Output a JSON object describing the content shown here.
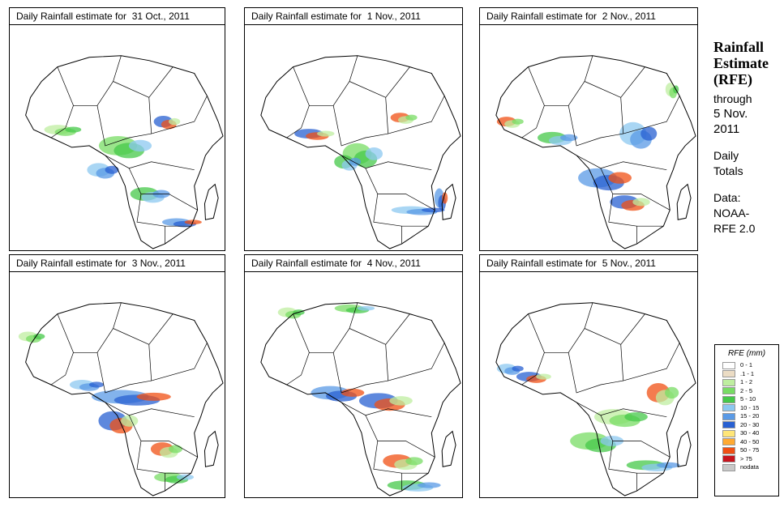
{
  "panels": [
    {
      "title": "Daily Rainfall estimate for  31 Oct., 2011"
    },
    {
      "title": "Daily Rainfall estimate for  1 Nov., 2011"
    },
    {
      "title": "Daily Rainfall estimate for  2 Nov., 2011"
    },
    {
      "title": "Daily Rainfall estimate for  3 Nov., 2011"
    },
    {
      "title": "Daily Rainfall estimate for  4 Nov., 2011"
    },
    {
      "title": "Daily Rainfall estimate for  5 Nov., 2011"
    }
  ],
  "side": {
    "title_line1": "Rainfall",
    "title_line2": "Estimate",
    "title_line3": "(RFE)",
    "through": "through",
    "date_line1": "5 Nov.",
    "date_line2": "2011",
    "period_line1": "Daily",
    "period_line2": "Totals",
    "data_line1": "Data:",
    "data_line2": "NOAA-",
    "data_line3": "RFE 2.0"
  },
  "legend": {
    "title": "RFE (mm)",
    "items": [
      {
        "label": "0 - 1",
        "color": "#ffffff"
      },
      {
        "label": ".1 - 1",
        "color": "#ebdcc4"
      },
      {
        "label": "1 - 2",
        "color": "#bfeea0"
      },
      {
        "label": "2 - 5",
        "color": "#78dc64"
      },
      {
        "label": "5 - 10",
        "color": "#46c84a"
      },
      {
        "label": "10 - 15",
        "color": "#8cc8f0"
      },
      {
        "label": "15 - 20",
        "color": "#5a9ae6"
      },
      {
        "label": "20 - 30",
        "color": "#2860d2"
      },
      {
        "label": "30 - 40",
        "color": "#ffe678"
      },
      {
        "label": "40 - 50",
        "color": "#ffaa32"
      },
      {
        "label": "50 - 75",
        "color": "#f05014"
      },
      {
        "label": "> 75",
        "color": "#c8141e"
      },
      {
        "label": "nodata",
        "color": "#c8c8c8"
      }
    ]
  }
}
